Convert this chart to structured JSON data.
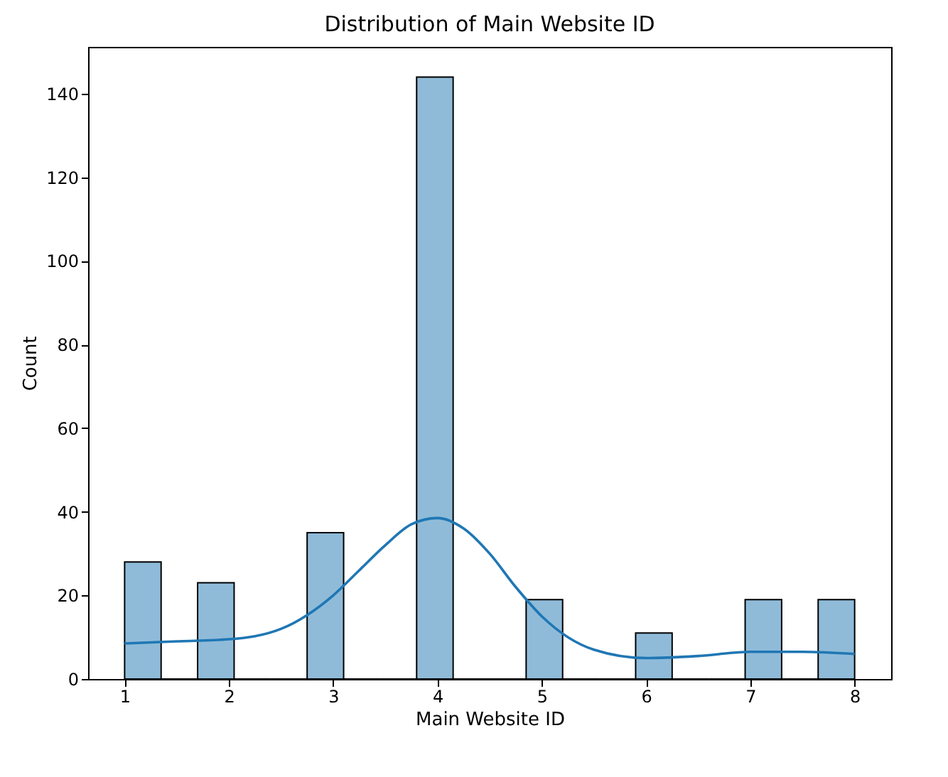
{
  "chart_data": {
    "type": "histogram",
    "title": "Distribution of Main Website ID",
    "xlabel": "Main Website ID",
    "ylabel": "Count",
    "bins": [
      1,
      1.35,
      1.7,
      2.05,
      2.4,
      2.75,
      3.1,
      3.45,
      3.8,
      4.15,
      4.5,
      4.85,
      5.2,
      5.55,
      5.9,
      6.25,
      6.6,
      6.95,
      7.3,
      7.65,
      8
    ],
    "values": [
      28,
      0,
      23,
      0,
      0,
      35,
      0,
      0,
      144,
      0,
      0,
      19,
      0,
      0,
      11,
      0,
      0,
      19,
      0,
      19
    ],
    "color": "#8fbbd9",
    "series": [
      {
        "type": "line",
        "color": "#1f77b4",
        "x": [
          1,
          1.5,
          2,
          2.5,
          3,
          3.25,
          3.5,
          3.75,
          4,
          4.25,
          4.5,
          4.75,
          5,
          5.5,
          6,
          6.5,
          7,
          7.5,
          8
        ],
        "values": [
          8.5,
          9,
          9.5,
          12,
          20,
          26,
          32,
          37,
          38.5,
          36,
          30,
          22,
          15,
          7,
          5,
          5.5,
          6.5,
          6.5,
          6
        ]
      }
    ],
    "xlim": [
      0.65,
      8.35
    ],
    "xticks": [
      1,
      2,
      3,
      4,
      5,
      6,
      7,
      8
    ],
    "ylim": [
      0,
      151.2
    ],
    "yticks": [
      0,
      20,
      40,
      60,
      80,
      100,
      120,
      140
    ],
    "grid": false
  }
}
